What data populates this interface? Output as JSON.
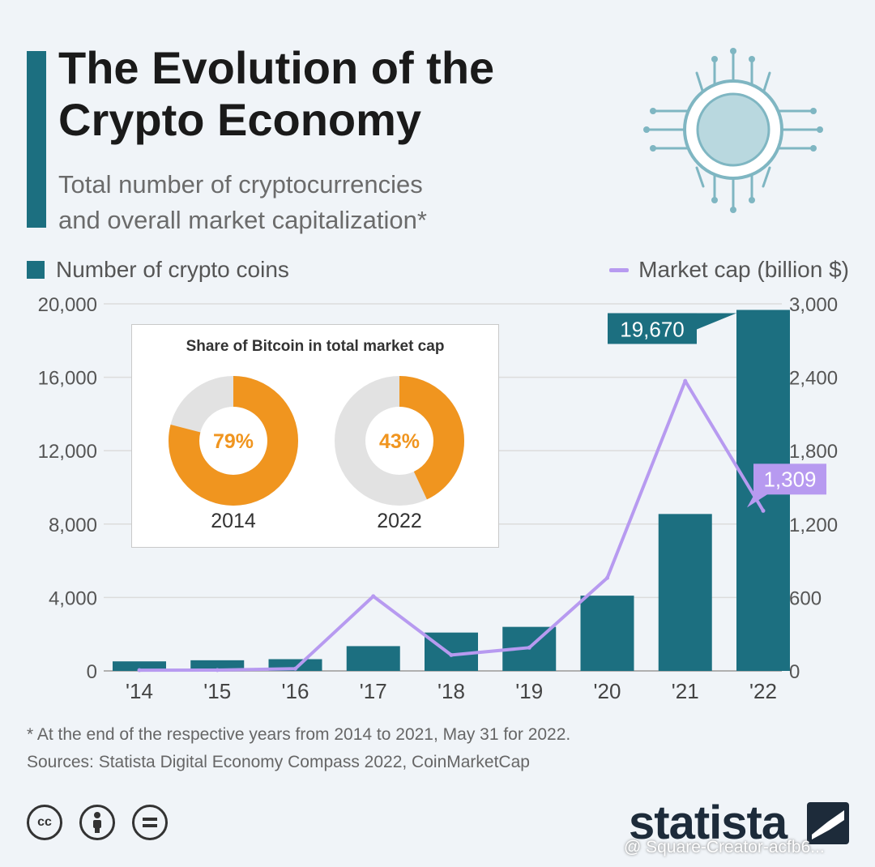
{
  "header": {
    "title_line1": "The Evolution of the",
    "title_line2": "Crypto Economy",
    "subtitle_line1": "Total number of cryptocurrencies",
    "subtitle_line2": "and overall market capitalization*"
  },
  "chart_data": {
    "type": "bar",
    "categories": [
      "'14",
      "'15",
      "'16",
      "'17",
      "'18",
      "'19",
      "'20",
      "'21",
      "'22"
    ],
    "series": [
      {
        "name": "Number of crypto coins",
        "type": "bar",
        "axis": "left",
        "values": [
          520,
          580,
          640,
          1350,
          2090,
          2400,
          4100,
          8550,
          19670
        ],
        "color": "#1c6f80"
      },
      {
        "name": "Market cap (billion $)",
        "type": "line",
        "axis": "right",
        "values": [
          6,
          7,
          18,
          610,
          130,
          190,
          760,
          2370,
          1309
        ],
        "color": "#b79af0"
      }
    ],
    "y_left": {
      "range": [
        0,
        20000
      ],
      "ticks": [
        "20,000",
        "16,000",
        "12,000",
        "8,000",
        "4,000",
        "0"
      ]
    },
    "y_right": {
      "range": [
        0,
        3000
      ],
      "ticks": [
        "3,000",
        "2,400",
        "1,800",
        "1,200",
        "600",
        "0"
      ]
    },
    "callouts": {
      "bar_last": "19,670",
      "line_last": "1,309"
    },
    "grid": true,
    "legend_placement": "top"
  },
  "inset": {
    "title": "Share of Bitcoin in total market cap",
    "donuts": [
      {
        "year": "2014",
        "label": "79%",
        "share": 0.79
      },
      {
        "year": "2022",
        "label": "43%",
        "share": 0.43
      }
    ],
    "colors": {
      "share": "#f0951f",
      "rest": "#e2e2e2"
    }
  },
  "footer": {
    "note": "* At the end of the respective years from 2014 to 2021, May 31 for 2022.",
    "sources": "Sources: Statista Digital Economy Compass 2022, CoinMarketCap",
    "license_icons": [
      {
        "name": "cc-icon",
        "label": "cc"
      },
      {
        "name": "by-icon"
      },
      {
        "name": "nd-icon"
      }
    ],
    "brand": "statista",
    "watermark": "@ Square-Creator-acfb6..."
  },
  "colors": {
    "accent": "#1c6f80",
    "line": "#b79af0",
    "background": "#f0f4f8"
  }
}
